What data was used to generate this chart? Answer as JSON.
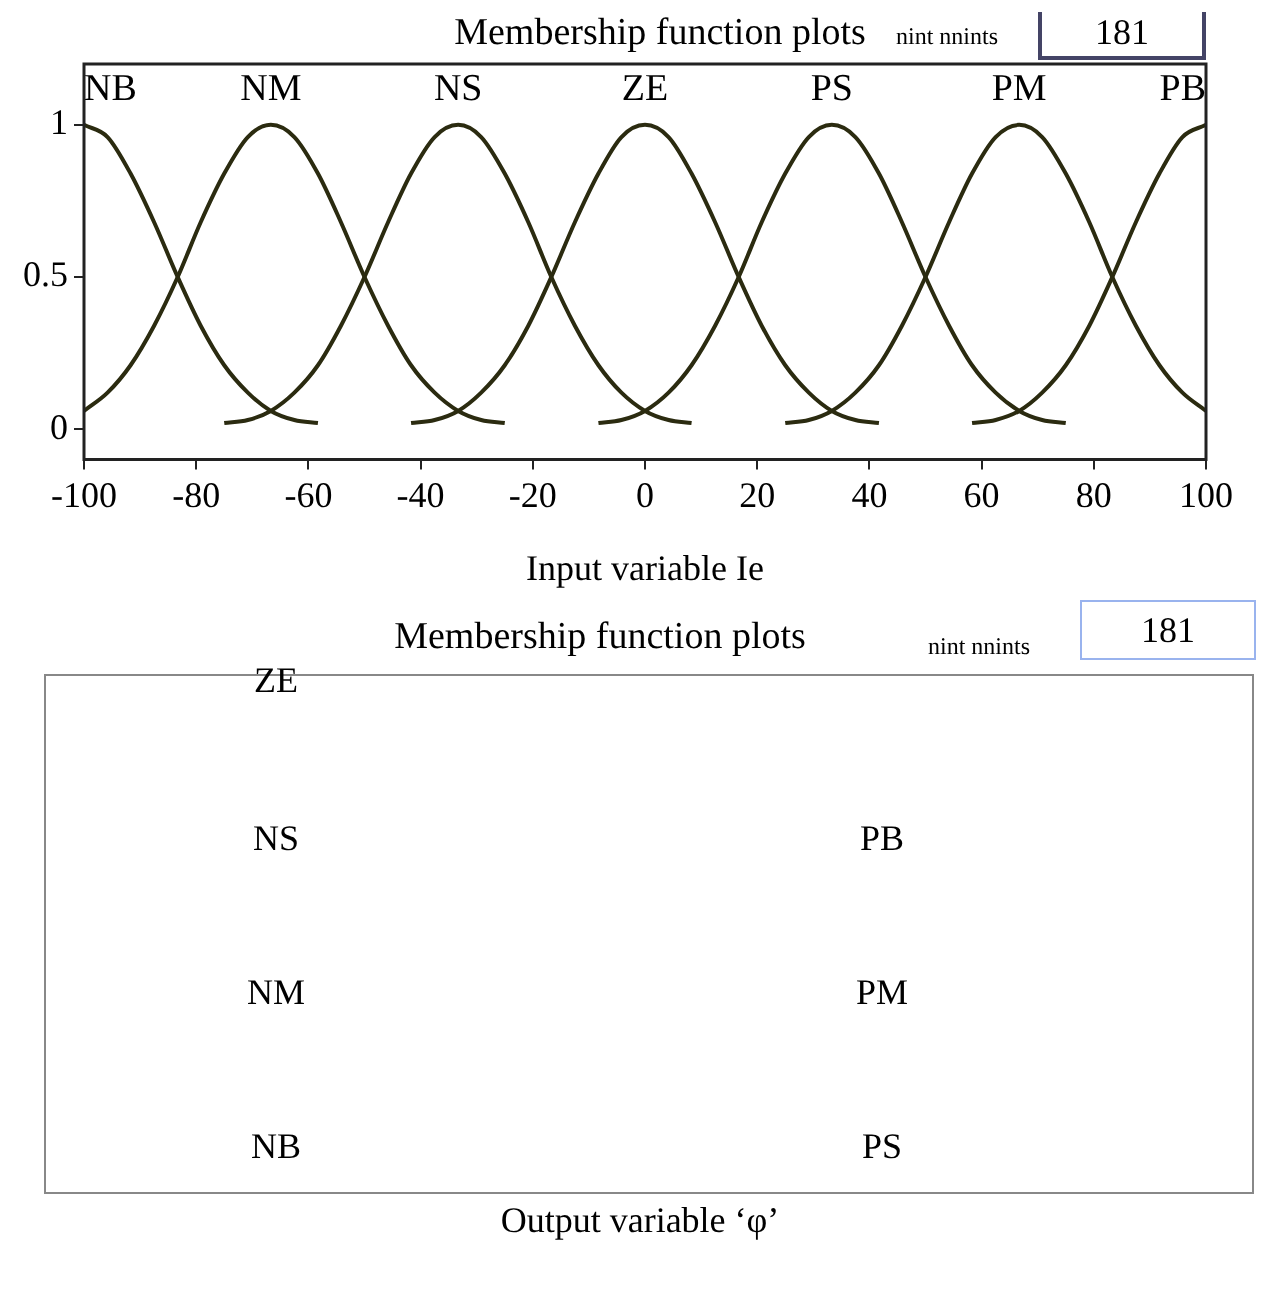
{
  "chart_data": [
    {
      "type": "line",
      "title": "Membership function plots",
      "xlabel": "Input variable Ie",
      "annotations": [
        "nint nnints",
        "181"
      ],
      "xlim": [
        -100,
        100
      ],
      "xticks": [
        -100,
        -80,
        -60,
        -40,
        -20,
        0,
        20,
        40,
        60,
        80,
        100
      ],
      "ylim": [
        -0.1,
        1.2
      ],
      "yticks": [
        0,
        0.5,
        1
      ],
      "grid": false,
      "legend": false,
      "marker": "none",
      "line_style": "solid",
      "series": [
        {
          "name": "NB",
          "color": "#2b2b10",
          "x": [
            -100,
            -95.8,
            -91.7,
            -87.5,
            -83.3,
            -79.2,
            -75,
            -70.8,
            -66.7,
            -62.5,
            -58.3
          ],
          "values": [
            1,
            0.96,
            0.84,
            0.68,
            0.5,
            0.34,
            0.21,
            0.12,
            0.06,
            0.03,
            0.02
          ]
        },
        {
          "name": "NM",
          "color": "#2b2b10",
          "x": [
            -100,
            -95.8,
            -91.7,
            -87.5,
            -83.3,
            -79.2,
            -75,
            -70.8,
            -66.7,
            -62.5,
            -58.3,
            -54.2,
            -50,
            -45.8,
            -41.7,
            -37.5,
            -33.3,
            -29.2,
            -25
          ],
          "values": [
            0.06,
            0.12,
            0.21,
            0.34,
            0.5,
            0.68,
            0.84,
            0.96,
            1,
            0.96,
            0.84,
            0.68,
            0.5,
            0.34,
            0.21,
            0.12,
            0.06,
            0.03,
            0.02
          ]
        },
        {
          "name": "NS",
          "color": "#2b2b10",
          "x": [
            -75,
            -70.8,
            -66.7,
            -62.5,
            -58.3,
            -54.2,
            -50,
            -45.8,
            -41.7,
            -37.5,
            -33.3,
            -29.2,
            -25,
            -20.8,
            -16.7,
            -12.5,
            -8.3,
            -4.2,
            0,
            4.2,
            8.3
          ],
          "values": [
            0.02,
            0.03,
            0.06,
            0.12,
            0.21,
            0.34,
            0.5,
            0.68,
            0.84,
            0.96,
            1,
            0.96,
            0.84,
            0.68,
            0.5,
            0.34,
            0.21,
            0.12,
            0.06,
            0.03,
            0.02
          ]
        },
        {
          "name": "ZE",
          "color": "#2b2b10",
          "x": [
            -41.7,
            -37.5,
            -33.3,
            -29.2,
            -25,
            -20.8,
            -16.7,
            -12.5,
            -8.3,
            -4.2,
            0,
            4.2,
            8.3,
            12.5,
            16.7,
            20.8,
            25,
            29.2,
            33.3,
            37.5,
            41.7
          ],
          "values": [
            0.02,
            0.03,
            0.06,
            0.12,
            0.21,
            0.34,
            0.5,
            0.68,
            0.84,
            0.96,
            1,
            0.96,
            0.84,
            0.68,
            0.5,
            0.34,
            0.21,
            0.12,
            0.06,
            0.03,
            0.02
          ]
        },
        {
          "name": "PS",
          "color": "#2b2b10",
          "x": [
            -8.3,
            -4.2,
            0,
            4.2,
            8.3,
            12.5,
            16.7,
            20.8,
            25,
            29.2,
            33.3,
            37.5,
            41.7,
            45.8,
            50,
            54.2,
            58.3,
            62.5,
            66.7,
            70.8,
            75
          ],
          "values": [
            0.02,
            0.03,
            0.06,
            0.12,
            0.21,
            0.34,
            0.5,
            0.68,
            0.84,
            0.96,
            1,
            0.96,
            0.84,
            0.68,
            0.5,
            0.34,
            0.21,
            0.12,
            0.06,
            0.03,
            0.02
          ]
        },
        {
          "name": "PM",
          "color": "#2b2b10",
          "x": [
            25,
            29.2,
            33.3,
            37.5,
            41.7,
            45.8,
            50,
            54.2,
            58.3,
            62.5,
            66.7,
            70.8,
            75,
            79.2,
            83.3,
            87.5,
            91.7,
            95.8,
            100
          ],
          "values": [
            0.02,
            0.03,
            0.06,
            0.12,
            0.21,
            0.34,
            0.5,
            0.68,
            0.84,
            0.96,
            1,
            0.96,
            0.84,
            0.68,
            0.5,
            0.34,
            0.21,
            0.12,
            0.06
          ]
        },
        {
          "name": "PB",
          "color": "#2b2b10",
          "x": [
            58.3,
            62.5,
            66.7,
            70.8,
            75,
            79.2,
            83.3,
            87.5,
            91.7,
            95.8,
            100
          ],
          "values": [
            0.02,
            0.03,
            0.06,
            0.12,
            0.21,
            0.34,
            0.5,
            0.68,
            0.84,
            0.96,
            1
          ]
        }
      ]
    },
    {
      "type": "other",
      "title": "Membership function plots",
      "xlabel": "Output variable ‘φ’",
      "annotations": [
        "nint nnints",
        "181",
        "ZE",
        "NS",
        "PB",
        "NM",
        "PM",
        "NB",
        "PS"
      ]
    }
  ]
}
